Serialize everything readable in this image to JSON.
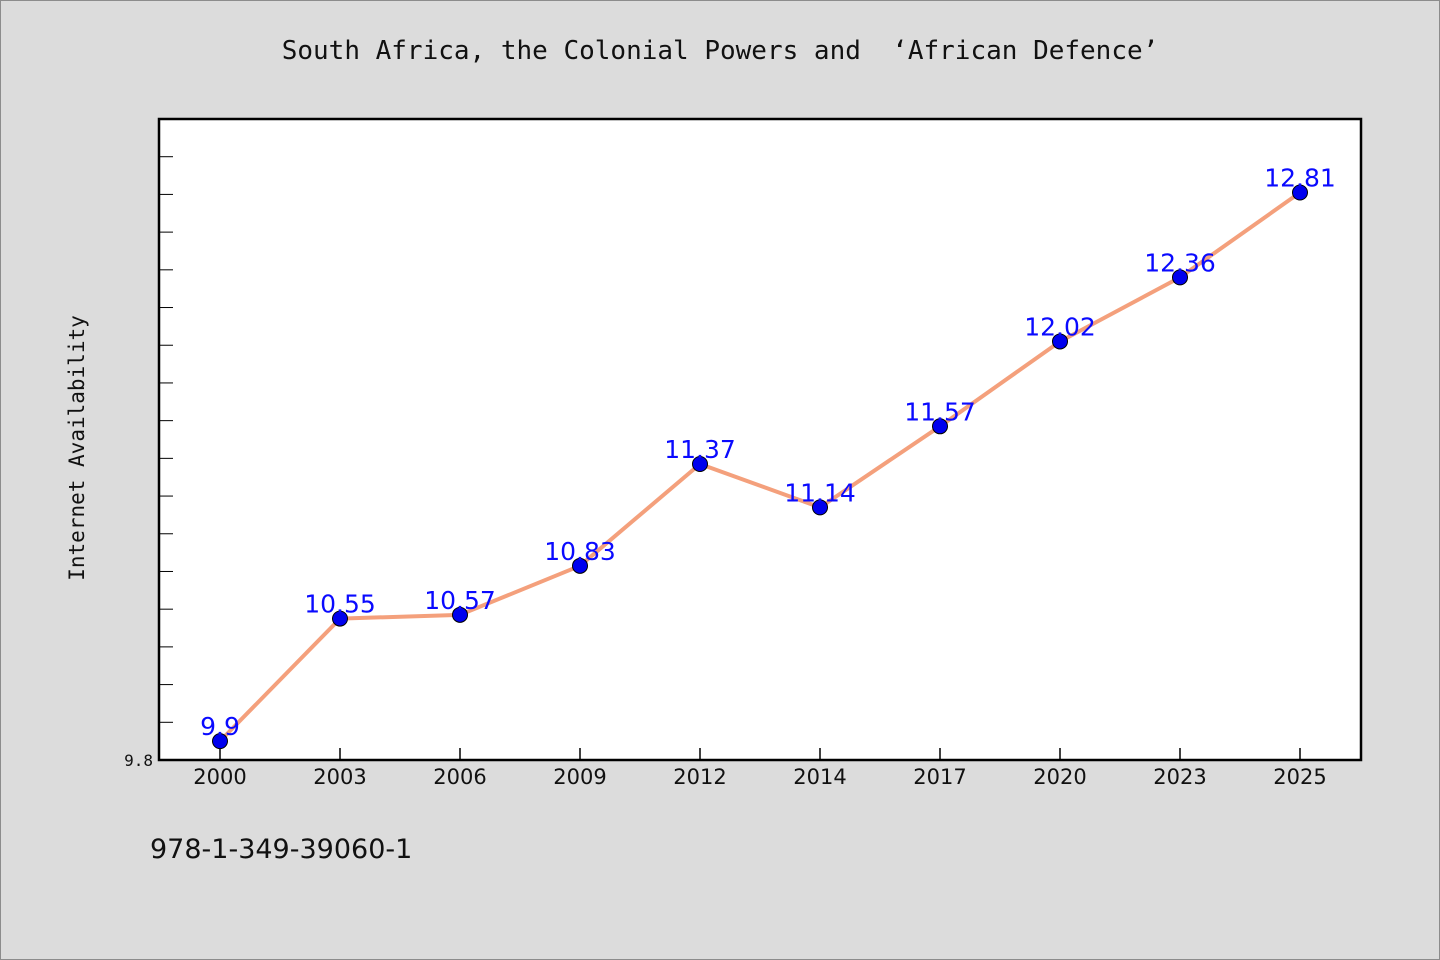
{
  "chart_data": {
    "type": "line",
    "title": "South Africa, the Colonial Powers and  ‘African Defence’",
    "xlabel": "",
    "ylabel": "Internet Availability",
    "categories": [
      "2000",
      "2003",
      "2006",
      "2009",
      "2012",
      "2014",
      "2017",
      "2020",
      "2023",
      "2025"
    ],
    "series": [
      {
        "values": [
          9.9,
          10.55,
          10.57,
          10.83,
          11.37,
          11.14,
          11.57,
          12.02,
          12.36,
          12.81
        ],
        "labels": [
          "9.9",
          "10.55",
          "10.57",
          "10.83",
          "11.37",
          "11.14",
          "11.57",
          "12.02",
          "12.36",
          "12.81"
        ],
        "line_color": "#f4a07c",
        "marker_color": "#0000ee"
      }
    ],
    "ylim": [
      9.8,
      13.2
    ],
    "yticks_labeled": [
      "9.8"
    ],
    "grid": false,
    "legend": "none"
  },
  "footnote": "978-1-349-39060-1"
}
